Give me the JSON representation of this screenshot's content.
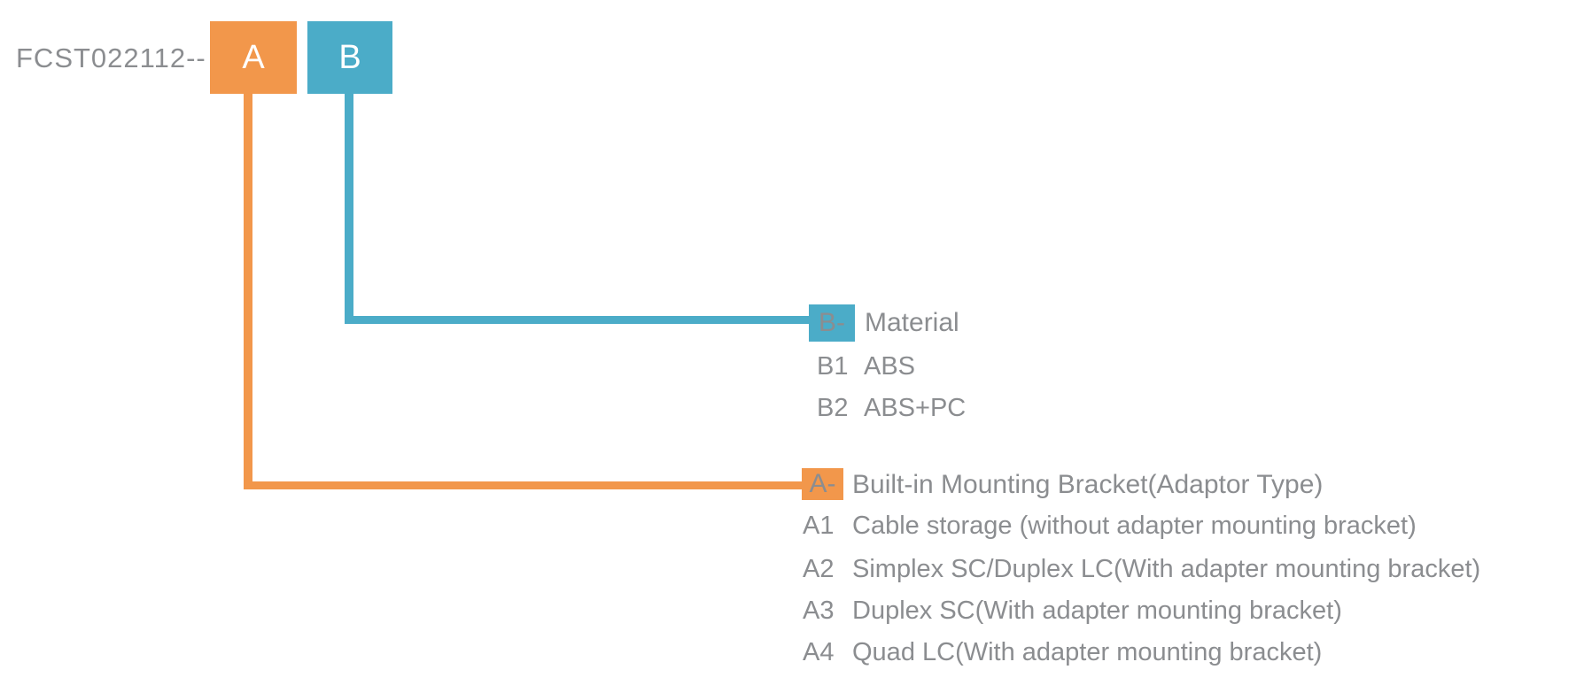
{
  "diagram": {
    "part_number": "FCST022112--",
    "colors": {
      "orange": "#F2974B",
      "teal": "#4BACC8",
      "text_gray": "#8B8D90",
      "box_letter": "#FFFFFF"
    },
    "code_boxes": {
      "a": {
        "label": "A",
        "color": "#F2974B"
      },
      "b": {
        "label": "B",
        "color": "#4BACC8"
      }
    },
    "sections": {
      "b": {
        "chip": "B-",
        "title": "Material",
        "color": "#4BACC8",
        "options": [
          {
            "code": "B1",
            "label": "ABS"
          },
          {
            "code": "B2",
            "label": "ABS+PC"
          }
        ]
      },
      "a": {
        "chip": "A-",
        "title": "Built-in Mounting Bracket(Adaptor Type)",
        "color": "#F2974B",
        "options": [
          {
            "code": "A1",
            "label": "Cable storage (without adapter mounting bracket)"
          },
          {
            "code": "A2",
            "label": "Simplex SC/Duplex LC(With adapter mounting bracket)"
          },
          {
            "code": "A3",
            "label": "Duplex SC(With adapter mounting bracket)"
          },
          {
            "code": "A4",
            "label": "Quad LC(With adapter mounting bracket)"
          }
        ]
      }
    }
  }
}
